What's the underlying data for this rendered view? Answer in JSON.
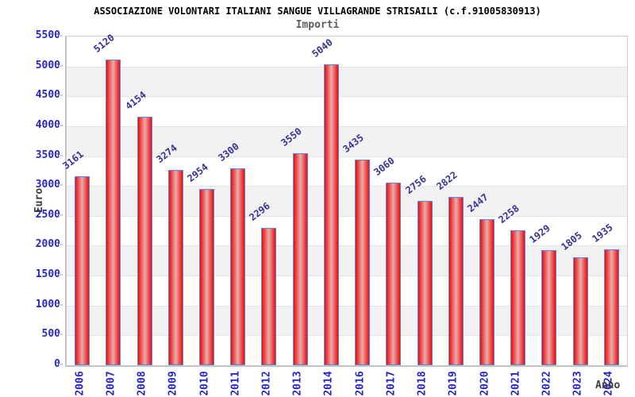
{
  "header": {
    "title": "ASSOCIAZIONE VOLONTARI ITALIANI SANGUE VILLAGRANDE STRISAILI (c.f.91005830913)",
    "subtitle": "Importi"
  },
  "chart_data": {
    "type": "bar",
    "title": "ASSOCIAZIONE VOLONTARI ITALIANI SANGUE VILLAGRANDE STRISAILI (c.f.91005830913)",
    "subtitle": "Importi",
    "xlabel": "Anno",
    "ylabel": "Euro",
    "categories": [
      "2006",
      "2007",
      "2008",
      "2009",
      "2010",
      "2011",
      "2012",
      "2013",
      "2014",
      "2016",
      "2017",
      "2018",
      "2019",
      "2020",
      "2021",
      "2022",
      "2023",
      "2024"
    ],
    "values": [
      3161,
      5120,
      4154,
      3274,
      2954,
      3300,
      2296,
      3550,
      5040,
      3435,
      3060,
      2756,
      2822,
      2447,
      2258,
      1929,
      1805,
      1935
    ],
    "ylim": [
      0,
      5500
    ],
    "ytick_step": 500,
    "grid": "alternating-horizontal-bands",
    "legend": "none",
    "colors": {
      "bar_edge": "#e01010",
      "bar_center": "#e7adad",
      "bar_border": "#5c86e8",
      "axis_tick_text": "#2525cb",
      "value_label_text": "#333399",
      "axis_title_text": "#3d3d3d",
      "band_gray": "#f2f2f2",
      "band_white": "#ffffff",
      "grid_line": "#e4e4e4",
      "plot_border": "#cbcbcb",
      "title_text": "#000000",
      "subtitle_text": "#5e5e5e"
    }
  }
}
